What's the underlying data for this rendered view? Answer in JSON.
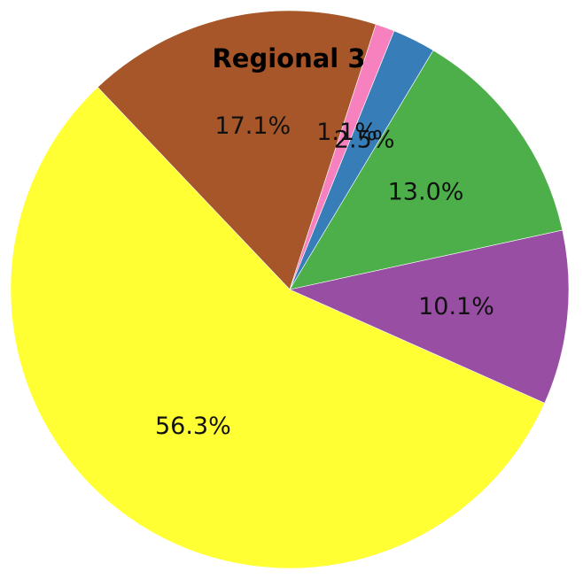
{
  "chart_data": {
    "type": "pie",
    "title": "Regional 3",
    "start_angle_deg": 72,
    "direction": "counterclockwise",
    "slices": [
      {
        "value": 17.1,
        "label": "17.1%",
        "color": "#a65628"
      },
      {
        "value": 56.3,
        "label": "56.3%",
        "color": "#ffff33"
      },
      {
        "value": 10.1,
        "label": "10.1%",
        "color": "#984ea3"
      },
      {
        "value": 13.0,
        "label": "13.0%",
        "color": "#4daf4a"
      },
      {
        "value": 2.5,
        "label": "2.5%",
        "color": "#377eb8"
      },
      {
        "value": 1.1,
        "label": "1.1%",
        "color": "#f781bf"
      }
    ]
  }
}
